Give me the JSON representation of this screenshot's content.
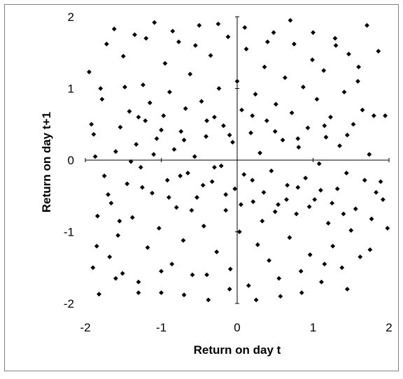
{
  "chart_data": {
    "type": "scatter",
    "title": "",
    "xlabel": "Return on day t",
    "ylabel": "Return on day t+1",
    "xlim": [
      -2,
      2
    ],
    "ylim": [
      -2,
      2
    ],
    "xticks": [
      "-2",
      "-1",
      "0",
      "1",
      "2"
    ],
    "yticks": [
      "-2",
      "-1",
      "0",
      "1",
      "2"
    ],
    "grid": false,
    "legend": "none",
    "marker": "diamond",
    "colors": {
      "marker": "#000000",
      "frame": "#808080",
      "background": "#ffffff",
      "axes": "#000000"
    },
    "points": [
      [
        -1.95,
        1.23
      ],
      [
        -1.92,
        0.5
      ],
      [
        -1.89,
        0.36
      ],
      [
        -1.87,
        0.05
      ],
      [
        -1.84,
        -0.78
      ],
      [
        -1.82,
        -1.87
      ],
      [
        -1.78,
        0.85
      ],
      [
        -1.75,
        -0.22
      ],
      [
        -1.72,
        1.62
      ],
      [
        -1.68,
        -1.35
      ],
      [
        -1.66,
        -0.6
      ],
      [
        -1.62,
        1.83
      ],
      [
        -1.6,
        0.12
      ],
      [
        -1.57,
        -1.05
      ],
      [
        -1.54,
        0.46
      ],
      [
        -1.51,
        -1.58
      ],
      [
        -1.48,
        1.02
      ],
      [
        -1.45,
        -0.33
      ],
      [
        -1.42,
        0.68
      ],
      [
        -1.38,
        -0.8
      ],
      [
        -1.35,
        1.75
      ],
      [
        -1.33,
        0.22
      ],
      [
        -1.3,
        -1.7
      ],
      [
        -1.27,
        -0.1
      ],
      [
        -1.24,
        1.05
      ],
      [
        -1.21,
        0.55
      ],
      [
        -1.18,
        -1.22
      ],
      [
        -1.15,
        0.8
      ],
      [
        -1.12,
        -0.46
      ],
      [
        -1.09,
        1.92
      ],
      [
        -1.06,
        0.3
      ],
      [
        -1.03,
        -0.95
      ],
      [
        -1.0,
        -1.85
      ],
      [
        -0.97,
        0.62
      ],
      [
        -0.95,
        1.35
      ],
      [
        -0.92,
        -0.28
      ],
      [
        -0.89,
        0.95
      ],
      [
        -0.86,
        -1.45
      ],
      [
        -0.83,
        0.15
      ],
      [
        -0.8,
        -0.66
      ],
      [
        -0.77,
        1.65
      ],
      [
        -0.74,
        0.4
      ],
      [
        -0.71,
        -1.12
      ],
      [
        -0.68,
        0.72
      ],
      [
        -0.65,
        -0.18
      ],
      [
        -0.62,
        1.2
      ],
      [
        -0.59,
        -1.6
      ],
      [
        -0.56,
        0.05
      ],
      [
        -0.53,
        -0.52
      ],
      [
        -0.5,
        1.88
      ],
      [
        -0.47,
        0.82
      ],
      [
        -0.44,
        -0.92
      ],
      [
        -0.41,
        0.33
      ],
      [
        -0.38,
        -1.95
      ],
      [
        -0.35,
        1.46
      ],
      [
        -0.33,
        -0.3
      ],
      [
        -0.3,
        0.6
      ],
      [
        -0.27,
        -1.28
      ],
      [
        -0.24,
        1.0
      ],
      [
        -0.21,
        -0.08
      ],
      [
        -0.18,
        0.48
      ],
      [
        -0.15,
        -0.7
      ],
      [
        -0.12,
        1.72
      ],
      [
        -0.09,
        -1.52
      ],
      [
        -0.06,
        0.25
      ],
      [
        -0.03,
        -0.4
      ],
      [
        0.0,
        1.1
      ],
      [
        0.03,
        -1.0
      ],
      [
        0.06,
        0.7
      ],
      [
        0.09,
        -0.2
      ],
      [
        0.12,
        1.55
      ],
      [
        0.15,
        -1.75
      ],
      [
        0.18,
        0.38
      ],
      [
        0.21,
        -0.58
      ],
      [
        0.24,
        0.92
      ],
      [
        0.27,
        -1.18
      ],
      [
        0.3,
        0.1
      ],
      [
        0.33,
        -0.85
      ],
      [
        0.36,
        1.3
      ],
      [
        0.39,
        0.55
      ],
      [
        0.42,
        -1.4
      ],
      [
        0.45,
        -0.15
      ],
      [
        0.48,
        1.78
      ],
      [
        0.51,
        0.78
      ],
      [
        0.54,
        -0.62
      ],
      [
        0.57,
        -1.9
      ],
      [
        0.6,
        0.28
      ],
      [
        0.63,
        1.15
      ],
      [
        0.66,
        -0.35
      ],
      [
        0.69,
        -1.08
      ],
      [
        0.72,
        0.66
      ],
      [
        0.75,
        1.62
      ],
      [
        0.78,
        -0.75
      ],
      [
        0.81,
        0.18
      ],
      [
        0.84,
        -1.55
      ],
      [
        0.87,
        1.02
      ],
      [
        0.9,
        -0.25
      ],
      [
        0.93,
        0.45
      ],
      [
        0.96,
        -1.32
      ],
      [
        0.99,
        1.4
      ],
      [
        1.02,
        -0.55
      ],
      [
        1.05,
        0.85
      ],
      [
        1.08,
        -0.05
      ],
      [
        1.11,
        -1.7
      ],
      [
        1.14,
        1.25
      ],
      [
        1.17,
        0.32
      ],
      [
        1.2,
        -0.88
      ],
      [
        1.23,
        0.6
      ],
      [
        1.26,
        -1.2
      ],
      [
        1.29,
        1.7
      ],
      [
        1.32,
        -0.4
      ],
      [
        1.35,
        0.2
      ],
      [
        1.38,
        -1.5
      ],
      [
        1.41,
        0.95
      ],
      [
        1.44,
        -0.18
      ],
      [
        1.47,
        1.48
      ],
      [
        1.5,
        -0.98
      ],
      [
        1.53,
        0.5
      ],
      [
        1.56,
        -0.68
      ],
      [
        1.59,
        1.1
      ],
      [
        1.62,
        -1.35
      ],
      [
        1.65,
        0.7
      ],
      [
        1.68,
        -0.28
      ],
      [
        1.71,
        1.88
      ],
      [
        1.74,
        0.08
      ],
      [
        1.77,
        -0.82
      ],
      [
        1.8,
        0.62
      ],
      [
        1.83,
        -0.45
      ],
      [
        1.86,
        1.52
      ],
      [
        1.89,
        -0.3
      ],
      [
        1.92,
        -0.55
      ],
      [
        1.95,
        0.62
      ],
      [
        1.98,
        -0.95
      ],
      [
        -1.9,
        -1.5
      ],
      [
        -1.7,
        -0.48
      ],
      [
        -1.55,
        -0.85
      ],
      [
        -1.4,
        -0.02
      ],
      [
        -1.25,
        -0.38
      ],
      [
        -1.1,
        0.08
      ],
      [
        -0.9,
        -0.52
      ],
      [
        -0.75,
        -0.22
      ],
      [
        -0.6,
        -0.7
      ],
      [
        -0.45,
        -0.35
      ],
      [
        -0.3,
        -0.1
      ],
      [
        -0.15,
        -0.48
      ],
      [
        0.05,
        -0.62
      ],
      [
        0.2,
        -0.28
      ],
      [
        0.35,
        -0.45
      ],
      [
        0.5,
        -0.72
      ],
      [
        0.65,
        -0.55
      ],
      [
        0.8,
        -0.38
      ],
      [
        0.95,
        -0.65
      ],
      [
        1.1,
        -0.42
      ],
      [
        1.25,
        -0.6
      ],
      [
        1.4,
        -0.75
      ],
      [
        -1.3,
        0.6
      ],
      [
        -1.0,
        0.42
      ],
      [
        -0.7,
        0.28
      ],
      [
        -0.4,
        0.55
      ],
      [
        -0.1,
        0.35
      ],
      [
        0.2,
        0.62
      ],
      [
        0.5,
        0.4
      ],
      [
        0.8,
        0.3
      ],
      [
        1.15,
        0.48
      ],
      [
        1.45,
        0.35
      ],
      [
        -1.8,
        1.0
      ],
      [
        -1.5,
        1.45
      ],
      [
        -1.2,
        1.7
      ],
      [
        -0.85,
        1.8
      ],
      [
        -0.55,
        1.6
      ],
      [
        -0.25,
        1.9
      ],
      [
        0.1,
        1.85
      ],
      [
        0.4,
        1.65
      ],
      [
        0.7,
        1.95
      ],
      [
        1.0,
        1.78
      ],
      [
        1.3,
        1.6
      ],
      [
        1.6,
        1.3
      ],
      [
        -1.85,
        -1.2
      ],
      [
        -1.6,
        -1.65
      ],
      [
        -1.3,
        -1.85
      ],
      [
        -1.0,
        -1.55
      ],
      [
        -0.7,
        -1.88
      ],
      [
        -0.4,
        -1.6
      ],
      [
        -0.1,
        -1.8
      ],
      [
        0.25,
        -1.95
      ],
      [
        0.55,
        -1.65
      ],
      [
        0.85,
        -1.85
      ],
      [
        1.15,
        -1.45
      ],
      [
        1.45,
        -1.8
      ],
      [
        1.75,
        -1.25
      ]
    ]
  }
}
